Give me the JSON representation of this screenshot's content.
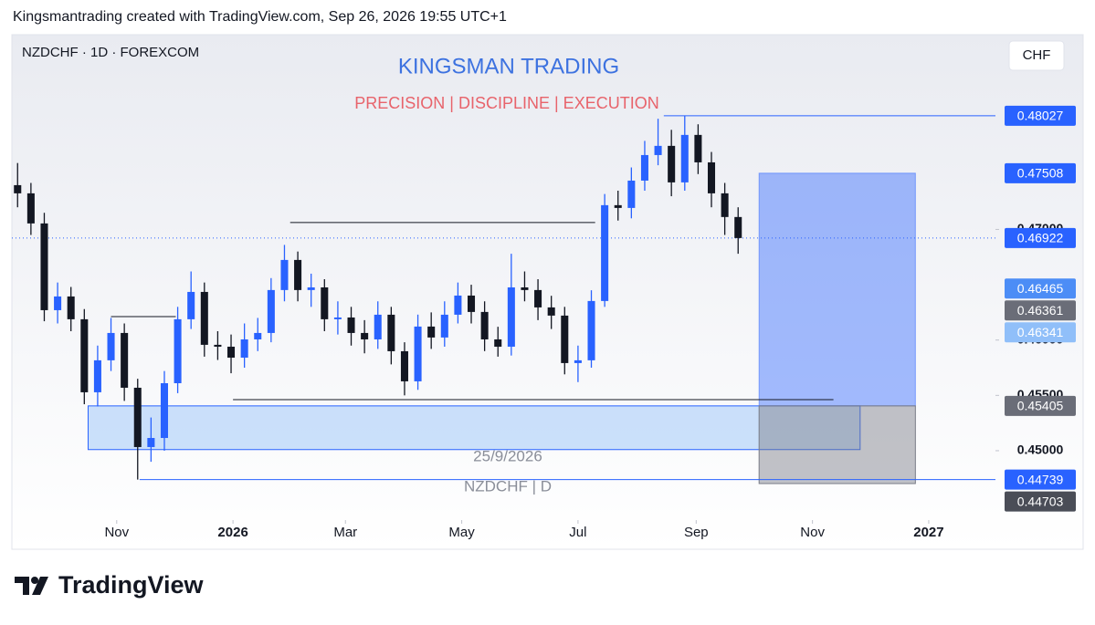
{
  "header": {
    "credit": "Kingsmantrading created with TradingView.com, Sep 26, 2026 19:55 UTC+1"
  },
  "chart_data": {
    "type": "candlestick",
    "symbol": "NZDCHF · 1D · FOREXCOM",
    "title": "KINGSMAN TRADING",
    "subtitle": "PRECISION |  DISCIPLINE  |  EXECUTION",
    "currency": "CHF",
    "watermark_date": "25/9/2026",
    "watermark_symbol": "NZDCHF | D",
    "up_color": "#2962ff",
    "down_color": "#131722",
    "grid": false,
    "xlim": [
      -24,
      492
    ],
    "ylim": [
      0.44373,
      0.4876
    ],
    "xticks": [
      {
        "value": 31,
        "label": "Nov"
      },
      {
        "value": 92,
        "label": "2026"
      },
      {
        "value": 151,
        "label": "Mar"
      },
      {
        "value": 212,
        "label": "May"
      },
      {
        "value": 273,
        "label": "Jul"
      },
      {
        "value": 335,
        "label": "Sep"
      },
      {
        "value": 396,
        "label": "Nov"
      },
      {
        "value": 457,
        "label": "2027"
      }
    ],
    "yticks": [
      {
        "value": 0.45,
        "label": "0.45000"
      },
      {
        "value": 0.455,
        "label": "0.45500"
      },
      {
        "value": 0.46,
        "label": "0.46000"
      },
      {
        "value": 0.47,
        "label": "0.47000"
      }
    ],
    "x": [
      -21,
      -14,
      -7,
      0,
      7,
      14,
      21,
      28,
      35,
      42,
      49,
      56,
      63,
      70,
      77,
      84,
      91,
      98,
      105,
      112,
      119,
      126,
      133,
      140,
      147,
      154,
      161,
      168,
      175,
      182,
      189,
      196,
      203,
      210,
      217,
      224,
      231,
      238,
      245,
      252,
      259,
      266,
      273,
      280,
      287,
      294,
      301,
      308,
      315,
      322,
      329,
      336,
      343,
      350,
      357
    ],
    "open": [
      0.474,
      0.47326,
      0.47054,
      0.4627,
      0.46394,
      0.46188,
      0.45528,
      0.45817,
      0.46064,
      0.45569,
      0.45033,
      0.45115,
      0.4561,
      0.46188,
      0.46435,
      0.45957,
      0.4594,
      0.45841,
      0.46006,
      0.46064,
      0.46452,
      0.46724,
      0.46452,
      0.46476,
      0.46188,
      0.46204,
      0.46064,
      0.46006,
      0.46229,
      0.45899,
      0.45627,
      0.46122,
      0.46023,
      0.46229,
      0.46402,
      0.46254,
      0.46006,
      0.4594,
      0.46476,
      0.46452,
      0.46295,
      0.46221,
      0.45792,
      0.45817,
      0.46353,
      0.47219,
      0.47194,
      0.47441,
      0.47672,
      0.47755,
      0.47425,
      0.47854,
      0.47606,
      0.47326,
      0.47112
    ],
    "high": [
      0.476,
      0.4742,
      0.4715,
      0.4652,
      0.4648,
      0.4628,
      0.4595,
      0.462,
      0.4615,
      0.4565,
      0.453,
      0.4572,
      0.463,
      0.4662,
      0.4652,
      0.4608,
      0.4605,
      0.4615,
      0.462,
      0.4656,
      0.4686,
      0.468,
      0.466,
      0.4655,
      0.4635,
      0.463,
      0.4618,
      0.4635,
      0.463,
      0.4598,
      0.4623,
      0.4625,
      0.4635,
      0.4652,
      0.465,
      0.4635,
      0.4612,
      0.4678,
      0.4662,
      0.4655,
      0.464,
      0.463,
      0.4595,
      0.4645,
      0.4732,
      0.4735,
      0.4756,
      0.478,
      0.48,
      0.479,
      0.48027,
      0.4795,
      0.477,
      0.4742,
      0.472
    ],
    "low": [
      0.472,
      0.4695,
      0.4617,
      0.4615,
      0.4608,
      0.4542,
      0.454,
      0.4572,
      0.4545,
      0.44739,
      0.449,
      0.45,
      0.4552,
      0.461,
      0.4585,
      0.4582,
      0.457,
      0.4575,
      0.459,
      0.4598,
      0.4635,
      0.4635,
      0.463,
      0.4608,
      0.4605,
      0.4595,
      0.4588,
      0.4592,
      0.4578,
      0.455,
      0.4555,
      0.4592,
      0.4594,
      0.4615,
      0.4615,
      0.459,
      0.4585,
      0.4586,
      0.4635,
      0.4618,
      0.461,
      0.4569,
      0.4562,
      0.4575,
      0.463,
      0.4708,
      0.471,
      0.4735,
      0.4758,
      0.473,
      0.4735,
      0.475,
      0.472,
      0.4695,
      0.4678
    ],
    "close": [
      0.47326,
      0.47054,
      0.4627,
      0.46394,
      0.46188,
      0.45528,
      0.45817,
      0.46064,
      0.45569,
      0.45033,
      0.45115,
      0.4561,
      0.46188,
      0.46435,
      0.45957,
      0.4594,
      0.45841,
      0.46006,
      0.46064,
      0.46452,
      0.46724,
      0.46452,
      0.46476,
      0.46188,
      0.46204,
      0.46064,
      0.46006,
      0.46229,
      0.45899,
      0.45627,
      0.46122,
      0.46023,
      0.46229,
      0.46402,
      0.46254,
      0.46006,
      0.4594,
      0.46476,
      0.46452,
      0.46295,
      0.46221,
      0.45792,
      0.45817,
      0.46353,
      0.47219,
      0.47194,
      0.47441,
      0.47672,
      0.47755,
      0.47425,
      0.47854,
      0.47606,
      0.47326,
      0.47112,
      0.46922
    ],
    "lines": [
      {
        "price": 0.48027,
        "x1": 318,
        "x2": 492
      },
      {
        "price": 0.47062,
        "x1": 122,
        "x2": 282
      },
      {
        "price": 0.46212,
        "x1": 28,
        "x2": 62
      },
      {
        "price": 0.45462,
        "x1": 92,
        "x2": 407
      },
      {
        "price": 0.44739,
        "x1": 43,
        "x2": 492
      }
    ],
    "zone": {
      "top": 0.45405,
      "bottom": 0.4501,
      "x1": 16,
      "x2": 421
    },
    "position": {
      "target": 0.47508,
      "entry": 0.45405,
      "stop": 0.44703,
      "x1": 368,
      "x2": 450
    },
    "price_labels": [
      {
        "value": 0.48027,
        "color": "#2962ff"
      },
      {
        "value": 0.47508,
        "color": "#2962ff"
      },
      {
        "value": 0.46922,
        "color": "#2962ff"
      },
      {
        "value": 0.46465,
        "color": "#4c8df6"
      },
      {
        "value": 0.46361,
        "color": "#6a6d78"
      },
      {
        "value": 0.46341,
        "color": "#90bff9"
      },
      {
        "value": 0.45405,
        "color": "#6a6d78"
      },
      {
        "value": 0.44739,
        "color": "#2962ff"
      },
      {
        "value": 0.44703,
        "color": "#4a4d57"
      }
    ]
  },
  "footer": {
    "logo": "TradingView"
  }
}
